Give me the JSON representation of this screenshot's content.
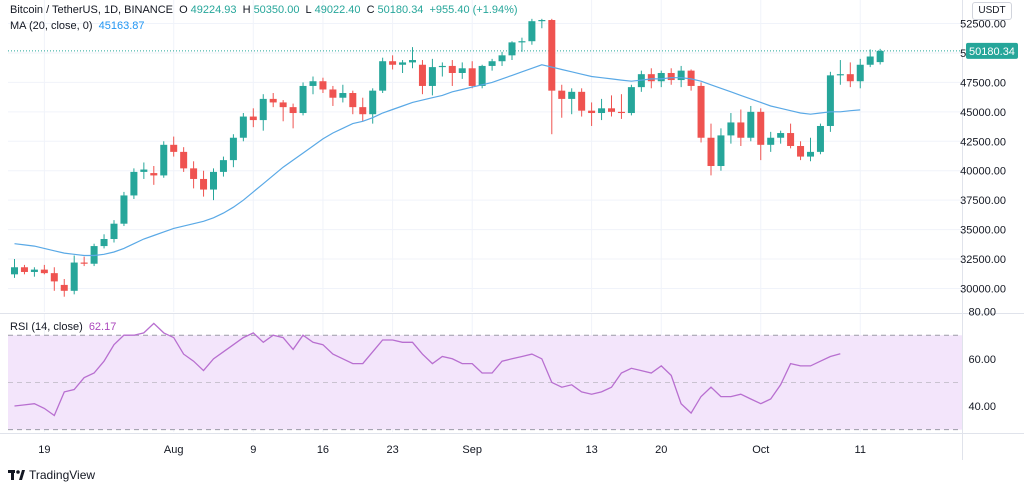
{
  "legend": {
    "symbol": "Bitcoin / TetherUS, 1D, BINANCE",
    "o_label": "O",
    "o_value": "49224.93",
    "h_label": "H",
    "h_value": "50350.00",
    "l_label": "L",
    "l_value": "49022.40",
    "c_label": "C",
    "c_value": "50180.34",
    "change": "+955.40 (+1.94%)",
    "ma_label": "MA (20, close, 0)",
    "ma_value": "45163.87",
    "rsi_label": "RSI (14, close)",
    "rsi_value": "62.17"
  },
  "currency_badge": "USDT",
  "brand": "TradingView",
  "colors": {
    "up": "#26a69a",
    "down": "#ef5350",
    "ma": "#5aa9e6",
    "rsi": "#b86fd0",
    "rsi_band": "#f3e5fb",
    "grid": "#f0f3fa",
    "axis_text": "#131722"
  },
  "chart_data": [
    {
      "type": "candlestick",
      "title": "Bitcoin / TetherUS, 1D, BINANCE",
      "ylim": [
        28000,
        54500
      ],
      "y_ticks": [
        30000,
        32500,
        35000,
        37500,
        40000,
        42500,
        45000,
        47500,
        50000,
        52500
      ],
      "y_tick_labels": [
        "30000.00",
        "32500.00",
        "35000.00",
        "37500.00",
        "40000.00",
        "42500.00",
        "45000.00",
        "47500.00",
        "50000.00",
        "52500.00"
      ],
      "last_price": 50180.34,
      "last_price_label": "50180.34",
      "x_tick_labels": [
        {
          "i": 3,
          "label": "19"
        },
        {
          "i": 16,
          "label": "Aug"
        },
        {
          "i": 24,
          "label": "9"
        },
        {
          "i": 31,
          "label": "16"
        },
        {
          "i": 38,
          "label": "23"
        },
        {
          "i": 46,
          "label": "Sep"
        },
        {
          "i": 58,
          "label": "13"
        },
        {
          "i": 65,
          "label": "20"
        },
        {
          "i": 75,
          "label": "Oct"
        },
        {
          "i": 85,
          "label": "11"
        }
      ],
      "candles": [
        {
          "o": 31200,
          "h": 32500,
          "l": 30900,
          "c": 31800
        },
        {
          "o": 31800,
          "h": 32000,
          "l": 31200,
          "c": 31400
        },
        {
          "o": 31400,
          "h": 31800,
          "l": 31000,
          "c": 31600
        },
        {
          "o": 31600,
          "h": 32000,
          "l": 31200,
          "c": 31300
        },
        {
          "o": 31300,
          "h": 31800,
          "l": 29800,
          "c": 30600
        },
        {
          "o": 30300,
          "h": 30800,
          "l": 29300,
          "c": 29800
        },
        {
          "o": 29800,
          "h": 32800,
          "l": 29500,
          "c": 32200
        },
        {
          "o": 32200,
          "h": 32700,
          "l": 31900,
          "c": 32100
        },
        {
          "o": 32100,
          "h": 33800,
          "l": 31900,
          "c": 33600
        },
        {
          "o": 33600,
          "h": 34600,
          "l": 33400,
          "c": 34200
        },
        {
          "o": 34200,
          "h": 35800,
          "l": 33900,
          "c": 35500
        },
        {
          "o": 35500,
          "h": 38200,
          "l": 35300,
          "c": 37900
        },
        {
          "o": 37900,
          "h": 40200,
          "l": 37600,
          "c": 39900
        },
        {
          "o": 39900,
          "h": 40700,
          "l": 39300,
          "c": 40100
        },
        {
          "o": 39800,
          "h": 40400,
          "l": 38800,
          "c": 39600
        },
        {
          "o": 39600,
          "h": 42500,
          "l": 39400,
          "c": 42200
        },
        {
          "o": 42200,
          "h": 42900,
          "l": 41200,
          "c": 41600
        },
        {
          "o": 41600,
          "h": 42000,
          "l": 39900,
          "c": 40200
        },
        {
          "o": 40200,
          "h": 40800,
          "l": 38500,
          "c": 39300
        },
        {
          "o": 39300,
          "h": 40000,
          "l": 37800,
          "c": 38400
        },
        {
          "o": 38400,
          "h": 40200,
          "l": 37500,
          "c": 39900
        },
        {
          "o": 39900,
          "h": 41200,
          "l": 39500,
          "c": 40900
        },
        {
          "o": 40900,
          "h": 43100,
          "l": 40300,
          "c": 42800
        },
        {
          "o": 42800,
          "h": 44900,
          "l": 42500,
          "c": 44600
        },
        {
          "o": 44600,
          "h": 45300,
          "l": 43700,
          "c": 44300
        },
        {
          "o": 44300,
          "h": 46500,
          "l": 43400,
          "c": 46100
        },
        {
          "o": 46100,
          "h": 46600,
          "l": 45400,
          "c": 45800
        },
        {
          "o": 45800,
          "h": 46000,
          "l": 44200,
          "c": 45400
        },
        {
          "o": 45400,
          "h": 45700,
          "l": 43600,
          "c": 44900
        },
        {
          "o": 44900,
          "h": 47500,
          "l": 44700,
          "c": 47200
        },
        {
          "o": 47200,
          "h": 48000,
          "l": 46500,
          "c": 47600
        },
        {
          "o": 47600,
          "h": 47900,
          "l": 46600,
          "c": 46900
        },
        {
          "o": 46900,
          "h": 47200,
          "l": 45500,
          "c": 46200
        },
        {
          "o": 46200,
          "h": 47300,
          "l": 45800,
          "c": 46600
        },
        {
          "o": 46600,
          "h": 46800,
          "l": 44800,
          "c": 45400
        },
        {
          "o": 45400,
          "h": 46200,
          "l": 44200,
          "c": 44800
        },
        {
          "o": 44800,
          "h": 47000,
          "l": 44000,
          "c": 46800
        },
        {
          "o": 46800,
          "h": 49600,
          "l": 46600,
          "c": 49300
        },
        {
          "o": 49300,
          "h": 49800,
          "l": 48600,
          "c": 49000
        },
        {
          "o": 49000,
          "h": 49400,
          "l": 48300,
          "c": 49200
        },
        {
          "o": 49200,
          "h": 50500,
          "l": 48700,
          "c": 49400
        },
        {
          "o": 49000,
          "h": 49400,
          "l": 46500,
          "c": 47200
        },
        {
          "o": 47200,
          "h": 49500,
          "l": 46400,
          "c": 48800
        },
        {
          "o": 48800,
          "h": 49200,
          "l": 48000,
          "c": 48900
        },
        {
          "o": 48900,
          "h": 49400,
          "l": 47200,
          "c": 48300
        },
        {
          "o": 48300,
          "h": 49200,
          "l": 47800,
          "c": 48700
        },
        {
          "o": 48700,
          "h": 49300,
          "l": 47000,
          "c": 47200
        },
        {
          "o": 47200,
          "h": 49000,
          "l": 47000,
          "c": 48900
        },
        {
          "o": 48900,
          "h": 49500,
          "l": 48500,
          "c": 49300
        },
        {
          "o": 49300,
          "h": 50100,
          "l": 48900,
          "c": 49800
        },
        {
          "o": 49800,
          "h": 51000,
          "l": 49400,
          "c": 50900
        },
        {
          "o": 50900,
          "h": 51300,
          "l": 50100,
          "c": 51000
        },
        {
          "o": 51000,
          "h": 52900,
          "l": 50700,
          "c": 52700
        },
        {
          "o": 52700,
          "h": 52900,
          "l": 52100,
          "c": 52800
        },
        {
          "o": 52800,
          "h": 52900,
          "l": 43100,
          "c": 46800
        },
        {
          "o": 46800,
          "h": 47300,
          "l": 44500,
          "c": 46100
        },
        {
          "o": 46100,
          "h": 47000,
          "l": 44800,
          "c": 46700
        },
        {
          "o": 46700,
          "h": 47000,
          "l": 44600,
          "c": 45100
        },
        {
          "o": 45100,
          "h": 45800,
          "l": 43800,
          "c": 44900
        },
        {
          "o": 44900,
          "h": 46100,
          "l": 44300,
          "c": 45300
        },
        {
          "o": 45300,
          "h": 46400,
          "l": 44600,
          "c": 45000
        },
        {
          "o": 45000,
          "h": 46500,
          "l": 44400,
          "c": 44900
        },
        {
          "o": 44900,
          "h": 47300,
          "l": 44700,
          "c": 47100
        },
        {
          "o": 47100,
          "h": 48500,
          "l": 46700,
          "c": 48200
        },
        {
          "o": 48200,
          "h": 48700,
          "l": 47000,
          "c": 47600
        },
        {
          "o": 47600,
          "h": 48500,
          "l": 47100,
          "c": 48300
        },
        {
          "o": 48300,
          "h": 48700,
          "l": 47300,
          "c": 47700
        },
        {
          "o": 47700,
          "h": 48900,
          "l": 47100,
          "c": 48500
        },
        {
          "o": 48500,
          "h": 48600,
          "l": 46800,
          "c": 47200
        },
        {
          "o": 47200,
          "h": 47500,
          "l": 42400,
          "c": 42800
        },
        {
          "o": 42800,
          "h": 44000,
          "l": 39600,
          "c": 40400
        },
        {
          "o": 40400,
          "h": 43600,
          "l": 40000,
          "c": 43000
        },
        {
          "o": 43000,
          "h": 44900,
          "l": 42300,
          "c": 44100
        },
        {
          "o": 44100,
          "h": 45200,
          "l": 42100,
          "c": 42800
        },
        {
          "o": 42800,
          "h": 45500,
          "l": 42500,
          "c": 45000
        },
        {
          "o": 45000,
          "h": 45300,
          "l": 40900,
          "c": 42200
        },
        {
          "o": 42200,
          "h": 43300,
          "l": 41600,
          "c": 42800
        },
        {
          "o": 42800,
          "h": 43400,
          "l": 42300,
          "c": 43200
        },
        {
          "o": 43200,
          "h": 44000,
          "l": 41900,
          "c": 42100
        },
        {
          "o": 42100,
          "h": 42500,
          "l": 40900,
          "c": 41200
        },
        {
          "o": 41200,
          "h": 42800,
          "l": 40800,
          "c": 41600
        },
        {
          "o": 41600,
          "h": 44000,
          "l": 41400,
          "c": 43800
        },
        {
          "o": 43800,
          "h": 48400,
          "l": 43300,
          "c": 48100
        },
        {
          "o": 48100,
          "h": 49400,
          "l": 47300,
          "c": 48200
        },
        {
          "o": 48200,
          "h": 49200,
          "l": 47100,
          "c": 47600
        },
        {
          "o": 47600,
          "h": 49500,
          "l": 47000,
          "c": 49000
        },
        {
          "o": 49000,
          "h": 50300,
          "l": 48800,
          "c": 49700
        },
        {
          "o": 49224.93,
          "h": 50350,
          "l": 49022.4,
          "c": 50180.34
        }
      ],
      "series": [
        {
          "name": "MA (20, close, 0)",
          "values": [
            33800,
            33700,
            33600,
            33400,
            33200,
            33000,
            32900,
            32800,
            32800,
            32900,
            33100,
            33400,
            33800,
            34200,
            34500,
            34800,
            35100,
            35300,
            35500,
            35700,
            36000,
            36400,
            36900,
            37500,
            38200,
            38900,
            39600,
            40300,
            40900,
            41500,
            42100,
            42700,
            43200,
            43600,
            44000,
            44200,
            44500,
            44900,
            45200,
            45500,
            45800,
            46000,
            46200,
            46400,
            46700,
            46900,
            47100,
            47300,
            47500,
            47800,
            48100,
            48400,
            48700,
            49000,
            48800,
            48600,
            48400,
            48200,
            48000,
            47900,
            47800,
            47700,
            47600,
            47700,
            47800,
            47800,
            47900,
            47900,
            47800,
            47600,
            47300,
            47000,
            46700,
            46400,
            46100,
            45800,
            45500,
            45300,
            45100,
            44900,
            44800,
            44900,
            45000,
            45000,
            45100,
            45163.87
          ]
        }
      ]
    },
    {
      "type": "line",
      "title": "RSI (14, close)",
      "ylim": [
        29,
        79
      ],
      "y_ticks": [
        40,
        60,
        80
      ],
      "y_tick_labels": [
        "40.00",
        "60.00",
        "80.00"
      ],
      "band": [
        30,
        70
      ],
      "midline": 50,
      "series": [
        {
          "name": "RSI (14, close)",
          "values": [
            40,
            40.5,
            41,
            39,
            36,
            46,
            47,
            52,
            54,
            59,
            66,
            70,
            70,
            71,
            75,
            71,
            69,
            62,
            59,
            55,
            60,
            63,
            66,
            69,
            71,
            67,
            70,
            69,
            64,
            70,
            67,
            66,
            62,
            60,
            58,
            58,
            63,
            68,
            68,
            67,
            67,
            62,
            58,
            61,
            60,
            58,
            58,
            54,
            54,
            59,
            60,
            61,
            62,
            60,
            50,
            48,
            49,
            46,
            45,
            46,
            48,
            54,
            56,
            55,
            54,
            57,
            53,
            41,
            37,
            44,
            48,
            44,
            44,
            45,
            43,
            41,
            43,
            49,
            58,
            57,
            57,
            59,
            61,
            62.17
          ]
        }
      ]
    }
  ]
}
